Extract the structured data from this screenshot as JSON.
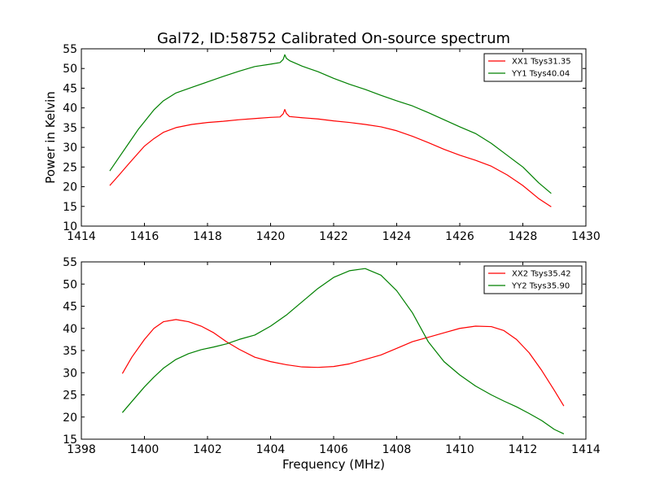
{
  "figure_title": "Gal72, ID:58752 Calibrated On-source spectrum",
  "colors": {
    "xx": "#ff0000",
    "yy": "#008000",
    "frame": "#000000",
    "background": "#ffffff"
  },
  "chart_data": [
    {
      "type": "line",
      "title": "Gal72, ID:58752 Calibrated On-source spectrum",
      "xlabel": "",
      "ylabel": "Power in Kelvin",
      "xlim": [
        1414,
        1430
      ],
      "ylim": [
        10,
        55
      ],
      "xticks": [
        1414,
        1416,
        1418,
        1420,
        1422,
        1424,
        1426,
        1428,
        1430
      ],
      "yticks": [
        10,
        15,
        20,
        25,
        30,
        35,
        40,
        45,
        50,
        55
      ],
      "grid": false,
      "legend_position": "top-right",
      "series": [
        {
          "name": "XX1 Tsys31.35",
          "color": "#ff0000",
          "x": [
            1414.9,
            1415.2,
            1415.5,
            1415.8,
            1416.0,
            1416.3,
            1416.6,
            1417.0,
            1417.5,
            1418.0,
            1418.5,
            1419.0,
            1419.5,
            1420.0,
            1420.3,
            1420.4,
            1420.45,
            1420.5,
            1420.6,
            1421.0,
            1421.5,
            1422.0,
            1422.5,
            1423.0,
            1423.5,
            1424.0,
            1424.5,
            1425.0,
            1425.5,
            1426.0,
            1426.5,
            1427.0,
            1427.5,
            1428.0,
            1428.5,
            1428.9
          ],
          "y": [
            20.3,
            23.0,
            25.8,
            28.5,
            30.3,
            32.2,
            33.8,
            35.0,
            35.8,
            36.3,
            36.6,
            37.0,
            37.3,
            37.6,
            37.7,
            38.5,
            39.6,
            38.6,
            37.8,
            37.5,
            37.2,
            36.7,
            36.3,
            35.8,
            35.2,
            34.2,
            32.8,
            31.2,
            29.5,
            28.0,
            26.7,
            25.2,
            23.0,
            20.3,
            17.0,
            14.9
          ]
        },
        {
          "name": "YY1 Tsys40.04",
          "color": "#008000",
          "x": [
            1414.9,
            1415.2,
            1415.5,
            1415.8,
            1416.0,
            1416.3,
            1416.6,
            1417.0,
            1417.5,
            1418.0,
            1418.5,
            1419.0,
            1419.5,
            1420.0,
            1420.3,
            1420.4,
            1420.45,
            1420.5,
            1420.6,
            1421.0,
            1421.5,
            1422.0,
            1422.5,
            1423.0,
            1423.5,
            1424.0,
            1424.5,
            1425.0,
            1425.5,
            1426.0,
            1426.5,
            1427.0,
            1427.5,
            1428.0,
            1428.5,
            1428.9
          ],
          "y": [
            24.0,
            27.5,
            31.0,
            34.5,
            36.5,
            39.5,
            41.8,
            43.8,
            45.2,
            46.6,
            48.0,
            49.3,
            50.5,
            51.1,
            51.5,
            52.3,
            53.5,
            52.6,
            52.0,
            50.6,
            49.2,
            47.5,
            46.0,
            44.7,
            43.2,
            41.8,
            40.5,
            38.8,
            37.0,
            35.2,
            33.5,
            31.0,
            28.0,
            25.0,
            21.0,
            18.3
          ]
        }
      ]
    },
    {
      "type": "line",
      "title": "",
      "xlabel": "Frequency (MHz)",
      "ylabel": "",
      "xlim": [
        1398,
        1414
      ],
      "ylim": [
        15,
        55
      ],
      "xticks": [
        1398,
        1400,
        1402,
        1404,
        1406,
        1408,
        1410,
        1412,
        1414
      ],
      "yticks": [
        15,
        20,
        25,
        30,
        35,
        40,
        45,
        50,
        55
      ],
      "grid": false,
      "legend_position": "top-right",
      "series": [
        {
          "name": "XX2 Tsys35.42",
          "color": "#ff0000",
          "x": [
            1399.3,
            1399.6,
            1400.0,
            1400.3,
            1400.6,
            1401.0,
            1401.4,
            1401.8,
            1402.2,
            1402.6,
            1403.0,
            1403.5,
            1404.0,
            1404.5,
            1405.0,
            1405.5,
            1406.0,
            1406.5,
            1407.0,
            1407.5,
            1408.0,
            1408.5,
            1409.0,
            1409.5,
            1410.0,
            1410.5,
            1411.0,
            1411.4,
            1411.8,
            1412.2,
            1412.6,
            1413.0,
            1413.3
          ],
          "y": [
            29.8,
            33.5,
            37.5,
            40.0,
            41.5,
            42.0,
            41.5,
            40.5,
            39.0,
            37.0,
            35.3,
            33.5,
            32.5,
            31.8,
            31.3,
            31.2,
            31.4,
            32.0,
            33.0,
            34.0,
            35.5,
            37.0,
            38.0,
            39.0,
            40.0,
            40.5,
            40.4,
            39.5,
            37.5,
            34.5,
            30.5,
            26.0,
            22.5
          ]
        },
        {
          "name": "YY2 Tsys35.90",
          "color": "#008000",
          "x": [
            1399.3,
            1399.6,
            1400.0,
            1400.3,
            1400.6,
            1401.0,
            1401.4,
            1401.8,
            1402.2,
            1402.6,
            1403.0,
            1403.5,
            1404.0,
            1404.5,
            1405.0,
            1405.5,
            1406.0,
            1406.5,
            1407.0,
            1407.5,
            1408.0,
            1408.5,
            1409.0,
            1409.5,
            1410.0,
            1410.5,
            1411.0,
            1411.4,
            1411.8,
            1412.2,
            1412.6,
            1413.0,
            1413.3
          ],
          "y": [
            21.0,
            23.5,
            26.8,
            29.0,
            31.0,
            33.0,
            34.3,
            35.2,
            35.8,
            36.5,
            37.5,
            38.5,
            40.5,
            43.0,
            46.0,
            49.0,
            51.5,
            53.0,
            53.5,
            52.0,
            48.5,
            43.5,
            37.0,
            32.5,
            29.5,
            27.0,
            25.0,
            23.6,
            22.3,
            20.8,
            19.2,
            17.2,
            16.2
          ]
        }
      ]
    }
  ]
}
